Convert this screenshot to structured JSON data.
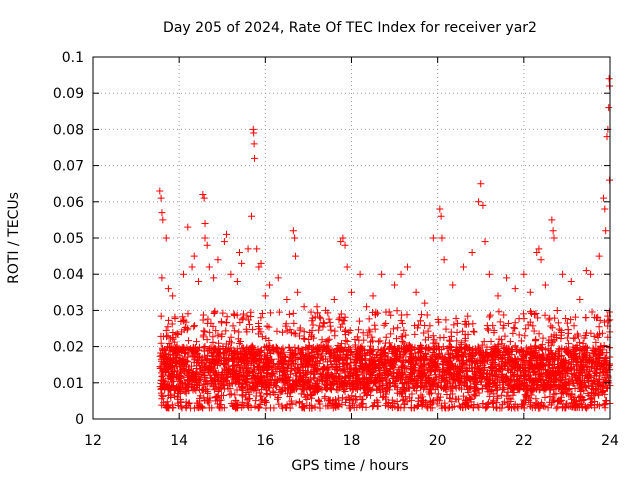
{
  "chart_data": {
    "type": "scatter",
    "title": "Day 205 of 2024, Rate Of TEC Index for receiver yar2",
    "xlabel": "GPS time / hours",
    "ylabel": "ROTI / TECUs",
    "xlim": [
      12,
      24
    ],
    "ylim": [
      0,
      0.1
    ],
    "x_ticks": [
      12,
      14,
      16,
      18,
      20,
      22,
      24
    ],
    "x_tick_labels": [
      "12",
      "14",
      "16",
      "18",
      "20",
      "22",
      "24"
    ],
    "y_ticks": [
      0,
      0.01,
      0.02,
      0.03,
      0.04,
      0.05,
      0.06,
      0.07,
      0.08,
      0.09,
      0.1
    ],
    "y_tick_labels": [
      "0",
      "0.01",
      "0.02",
      "0.03",
      "0.04",
      "0.05",
      "0.06",
      "0.07",
      "0.08",
      "0.09",
      "0.1"
    ],
    "grid": true,
    "marker": "plus",
    "marker_color": "#ff0000",
    "series": [
      {
        "name": "ROTI",
        "points": [
          [
            13.55,
            0.063
          ],
          [
            13.58,
            0.061
          ],
          [
            13.6,
            0.057
          ],
          [
            13.62,
            0.055
          ],
          [
            13.7,
            0.05
          ],
          [
            13.6,
            0.039
          ],
          [
            13.75,
            0.036
          ],
          [
            13.85,
            0.034
          ],
          [
            14.1,
            0.04
          ],
          [
            14.2,
            0.053
          ],
          [
            14.3,
            0.042
          ],
          [
            14.35,
            0.045
          ],
          [
            14.45,
            0.038
          ],
          [
            14.55,
            0.062
          ],
          [
            14.58,
            0.061
          ],
          [
            14.6,
            0.054
          ],
          [
            14.6,
            0.05
          ],
          [
            14.65,
            0.048
          ],
          [
            14.7,
            0.042
          ],
          [
            14.8,
            0.039
          ],
          [
            14.9,
            0.044
          ],
          [
            15.05,
            0.049
          ],
          [
            15.1,
            0.051
          ],
          [
            15.2,
            0.04
          ],
          [
            15.35,
            0.038
          ],
          [
            15.4,
            0.046
          ],
          [
            15.45,
            0.043
          ],
          [
            15.6,
            0.047
          ],
          [
            15.68,
            0.056
          ],
          [
            15.72,
            0.08
          ],
          [
            15.73,
            0.079
          ],
          [
            15.74,
            0.076
          ],
          [
            15.75,
            0.072
          ],
          [
            15.8,
            0.047
          ],
          [
            15.85,
            0.042
          ],
          [
            15.9,
            0.043
          ],
          [
            16.0,
            0.034
          ],
          [
            16.1,
            0.037
          ],
          [
            16.3,
            0.039
          ],
          [
            16.5,
            0.033
          ],
          [
            16.65,
            0.052
          ],
          [
            16.68,
            0.05
          ],
          [
            16.7,
            0.045
          ],
          [
            16.75,
            0.035
          ],
          [
            16.9,
            0.031
          ],
          [
            17.2,
            0.031
          ],
          [
            17.4,
            0.03
          ],
          [
            17.6,
            0.033
          ],
          [
            17.75,
            0.049
          ],
          [
            17.8,
            0.05
          ],
          [
            17.85,
            0.048
          ],
          [
            17.9,
            0.042
          ],
          [
            18.0,
            0.035
          ],
          [
            18.2,
            0.04
          ],
          [
            18.35,
            0.031
          ],
          [
            18.5,
            0.034
          ],
          [
            18.7,
            0.04
          ],
          [
            19.0,
            0.037
          ],
          [
            19.15,
            0.04
          ],
          [
            19.3,
            0.042
          ],
          [
            19.5,
            0.035
          ],
          [
            19.7,
            0.032
          ],
          [
            19.9,
            0.05
          ],
          [
            20.05,
            0.058
          ],
          [
            20.08,
            0.056
          ],
          [
            20.1,
            0.05
          ],
          [
            20.15,
            0.044
          ],
          [
            20.35,
            0.037
          ],
          [
            20.6,
            0.042
          ],
          [
            20.8,
            0.046
          ],
          [
            20.95,
            0.06
          ],
          [
            21.0,
            0.065
          ],
          [
            21.05,
            0.059
          ],
          [
            21.1,
            0.049
          ],
          [
            21.2,
            0.04
          ],
          [
            21.4,
            0.034
          ],
          [
            21.6,
            0.039
          ],
          [
            21.8,
            0.036
          ],
          [
            22.0,
            0.04
          ],
          [
            22.15,
            0.035
          ],
          [
            22.3,
            0.046
          ],
          [
            22.35,
            0.047
          ],
          [
            22.4,
            0.044
          ],
          [
            22.5,
            0.037
          ],
          [
            22.65,
            0.055
          ],
          [
            22.68,
            0.052
          ],
          [
            22.7,
            0.05
          ],
          [
            22.9,
            0.04
          ],
          [
            23.1,
            0.038
          ],
          [
            23.3,
            0.033
          ],
          [
            23.45,
            0.041
          ],
          [
            23.55,
            0.04
          ],
          [
            23.75,
            0.045
          ],
          [
            23.85,
            0.061
          ],
          [
            23.88,
            0.058
          ],
          [
            23.9,
            0.052
          ],
          [
            23.93,
            0.078
          ],
          [
            23.95,
            0.08
          ],
          [
            23.97,
            0.086
          ],
          [
            23.98,
            0.094
          ],
          [
            23.99,
            0.092
          ],
          [
            23.99,
            0.066
          ]
        ]
      }
    ],
    "dense_band": {
      "description": "many overlapping points between 13.5 and 24 h",
      "x_range": [
        13.55,
        24.0
      ],
      "typical_range": [
        0.003,
        0.03
      ]
    }
  }
}
